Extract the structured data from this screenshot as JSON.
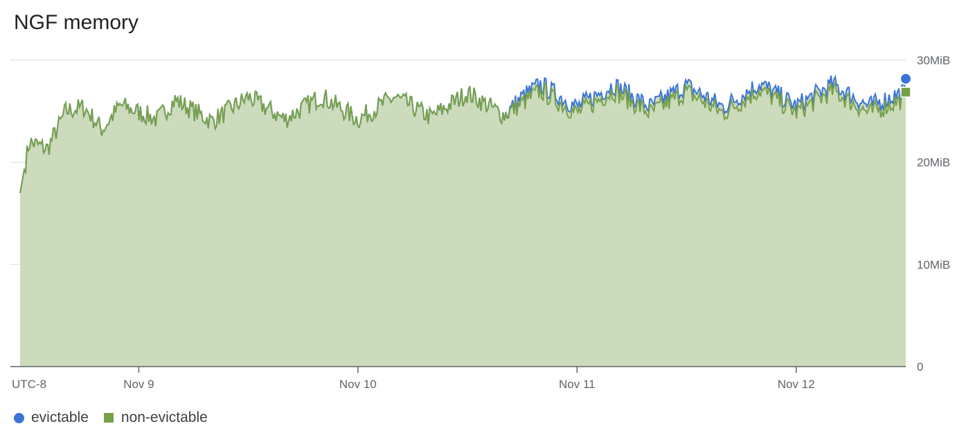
{
  "title": "NGF memory",
  "chart_data": {
    "type": "area",
    "title": "NGF memory",
    "timezone_label": "UTC-8",
    "x_ticks": [
      {
        "label": "Nov 9",
        "value": "2023-11-09T00:00"
      },
      {
        "label": "Nov 10",
        "value": "2023-11-10T00:00"
      },
      {
        "label": "Nov 11",
        "value": "2023-11-11T00:00"
      },
      {
        "label": "Nov 12",
        "value": "2023-11-12T00:00"
      }
    ],
    "x_range": [
      "2023-11-08T11:00",
      "2023-11-12T12:00"
    ],
    "y_ticks": [
      {
        "label": "0",
        "value": 0
      },
      {
        "label": "10MiB",
        "value": 10
      },
      {
        "label": "20MiB",
        "value": 20
      },
      {
        "label": "30MiB",
        "value": 30
      }
    ],
    "ylim": [
      0,
      30
    ],
    "y_axis_position": "right",
    "grid": true,
    "stacked": true,
    "legend_position": "bottom-left",
    "series": [
      {
        "name": "non-evictable",
        "color": "#77a04a",
        "marker": "square",
        "points": [
          [
            "2023-11-08T11:00",
            17.0
          ],
          [
            "2023-11-08T12:00",
            22.0
          ],
          [
            "2023-11-08T14:00",
            21.3
          ],
          [
            "2023-11-08T16:00",
            25.0
          ],
          [
            "2023-11-08T18:00",
            25.4
          ],
          [
            "2023-11-08T20:00",
            23.2
          ],
          [
            "2023-11-08T22:00",
            25.6
          ],
          [
            "2023-11-09T02:00",
            24.2
          ],
          [
            "2023-11-09T04:00",
            26.1
          ],
          [
            "2023-11-09T08:00",
            24.0
          ],
          [
            "2023-11-09T12:00",
            26.4
          ],
          [
            "2023-11-09T16:00",
            24.2
          ],
          [
            "2023-11-09T20:00",
            26.5
          ],
          [
            "2023-11-10T00:00",
            24.2
          ],
          [
            "2023-11-10T04:00",
            26.4
          ],
          [
            "2023-11-10T08:00",
            24.4
          ],
          [
            "2023-11-10T12:00",
            26.8
          ],
          [
            "2023-11-10T16:00",
            24.6
          ],
          [
            "2023-11-10T20:00",
            27.0
          ],
          [
            "2023-11-11T00:00",
            24.8
          ],
          [
            "2023-11-11T04:00",
            27.0
          ],
          [
            "2023-11-11T08:00",
            24.8
          ],
          [
            "2023-11-11T12:00",
            26.9
          ],
          [
            "2023-11-11T16:00",
            24.8
          ],
          [
            "2023-11-11T20:00",
            27.1
          ],
          [
            "2023-11-12T00:00",
            24.9
          ],
          [
            "2023-11-12T04:00",
            27.0
          ],
          [
            "2023-11-12T08:00",
            24.8
          ],
          [
            "2023-11-12T12:00",
            26.3
          ]
        ]
      },
      {
        "name": "evictable",
        "color": "#3a74d9",
        "marker": "circle",
        "points": [
          [
            "2023-11-08T11:00",
            0.0
          ],
          [
            "2023-11-10T16:00",
            0.0
          ],
          [
            "2023-11-10T18:00",
            0.6
          ],
          [
            "2023-11-11T00:00",
            0.6
          ],
          [
            "2023-11-11T12:00",
            0.6
          ],
          [
            "2023-11-12T00:00",
            0.6
          ],
          [
            "2023-11-12T12:00",
            0.7
          ]
        ]
      }
    ]
  }
}
